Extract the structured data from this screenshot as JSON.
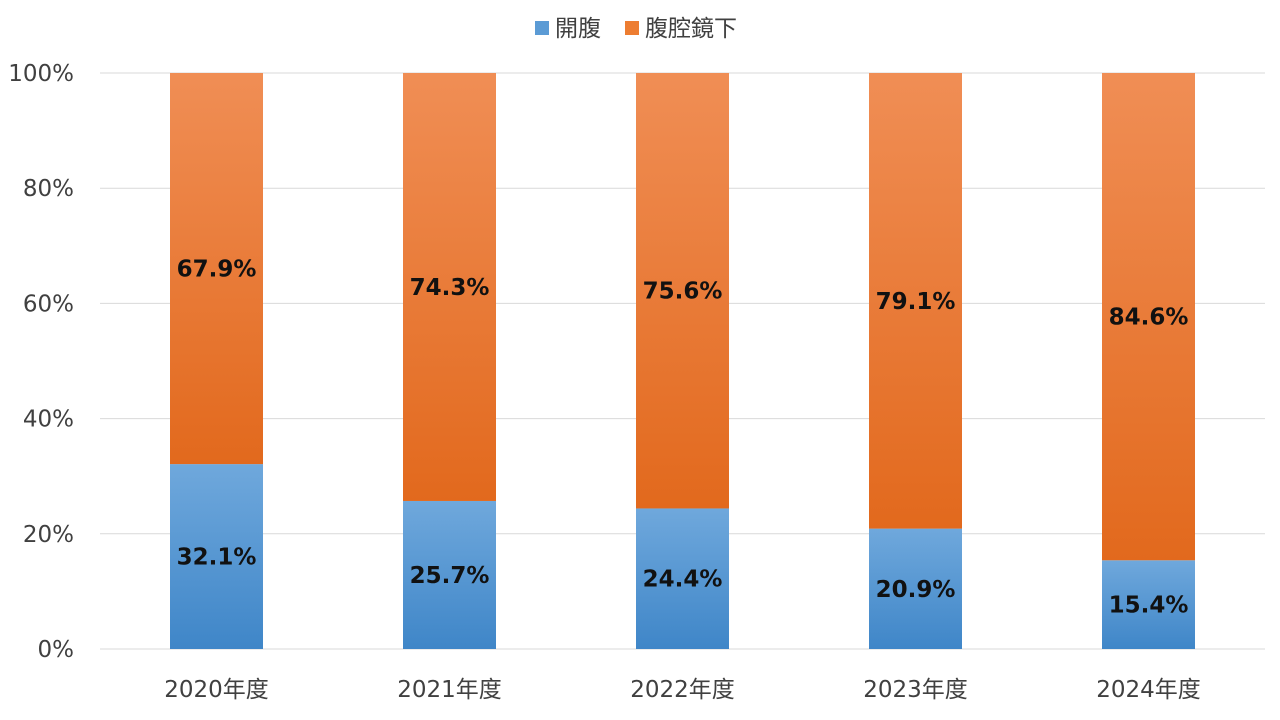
{
  "chart_data": {
    "type": "bar",
    "stacked": true,
    "categories": [
      "2020年度",
      "2021年度",
      "2022年度",
      "2023年度",
      "2024年度"
    ],
    "series": [
      {
        "name": "開腹",
        "values": [
          32.1,
          25.7,
          24.4,
          20.9,
          15.4
        ],
        "labels": [
          "32.1%",
          "25.7%",
          "24.4%",
          "20.9%",
          "15.4%"
        ],
        "color": "#5b9bd5"
      },
      {
        "name": "腹腔鏡下",
        "values": [
          67.9,
          74.3,
          75.6,
          79.1,
          84.6
        ],
        "labels": [
          "67.9%",
          "74.3%",
          "75.6%",
          "79.1%",
          "84.6%"
        ],
        "color": "#ed7d31"
      }
    ],
    "ylim": [
      0,
      100
    ],
    "yticks": [
      "0%",
      "20%",
      "40%",
      "60%",
      "80%",
      "100%"
    ],
    "grid": true,
    "legend": "top-center"
  }
}
